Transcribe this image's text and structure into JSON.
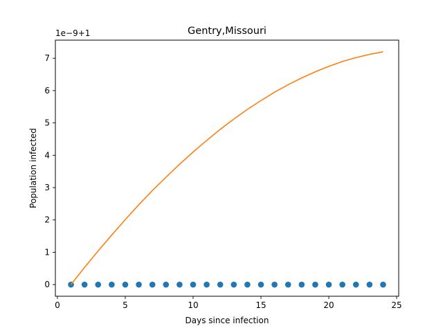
{
  "chart_data": {
    "type": "scatter",
    "title": "Gentry,Missouri",
    "xlabel": "Days since infection",
    "ylabel": "Population infected",
    "offset_label": "1e−9+1",
    "xlim": [
      -0.15,
      25.15
    ],
    "ylim": [
      -0.36,
      7.56
    ],
    "x_ticks": [
      0,
      5,
      10,
      15,
      20,
      25
    ],
    "x_tick_labels": [
      "0",
      "5",
      "10",
      "15",
      "20",
      "25"
    ],
    "y_ticks": [
      0,
      1,
      2,
      3,
      4,
      5,
      6,
      7
    ],
    "y_tick_labels": [
      "0",
      "1",
      "2",
      "3",
      "4",
      "5",
      "6",
      "7"
    ],
    "grid": false,
    "series": [
      {
        "kind": "scatter",
        "color": "#1f77b4",
        "x": [
          1,
          2,
          3,
          4,
          5,
          6,
          7,
          8,
          9,
          10,
          11,
          12,
          13,
          14,
          15,
          16,
          17,
          18,
          19,
          20,
          21,
          22,
          23,
          24
        ],
        "y": [
          0,
          0,
          0,
          0,
          0,
          0,
          0,
          0,
          0,
          0,
          0,
          0,
          0,
          0,
          0,
          0,
          0,
          0,
          0,
          0,
          0,
          0,
          0,
          0
        ]
      },
      {
        "kind": "line",
        "color": "#ff7f0e",
        "x": [
          1,
          2,
          3,
          4,
          5,
          6,
          7,
          8,
          9,
          10,
          11,
          12,
          13,
          14,
          15,
          16,
          17,
          18,
          19,
          20,
          21,
          22,
          23,
          24
        ],
        "y": [
          0.0,
          0.53,
          1.04,
          1.53,
          2.01,
          2.47,
          2.91,
          3.32,
          3.72,
          4.1,
          4.46,
          4.8,
          5.12,
          5.42,
          5.69,
          5.95,
          6.18,
          6.39,
          6.58,
          6.75,
          6.9,
          7.02,
          7.12,
          7.2
        ]
      }
    ]
  }
}
